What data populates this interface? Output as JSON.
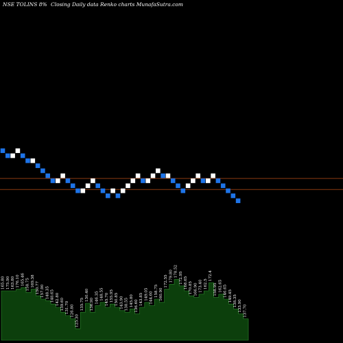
{
  "title": {
    "symbol": "NSE TOLINS",
    "change": "8%",
    "arrow": "",
    "description": "Closing Daily data Renko charts MunafaSutra.com"
  },
  "colors": {
    "background": "#000000",
    "up_brick": "#ffffff",
    "down_brick": "#1e74e8",
    "level_line": "#8a3a10",
    "volume": "#0c3f0c",
    "volume_line": "#2e8b2e",
    "label": "#ffffff"
  },
  "chart_data": {
    "type": "renko",
    "title": "NSE TOLINS 8% Closing Daily data Renko charts MunafaSutra.com",
    "bricks": [
      {
        "dir": "down",
        "level": 0
      },
      {
        "dir": "down",
        "level": -1
      },
      {
        "dir": "up",
        "level": -1
      },
      {
        "dir": "up",
        "level": 0
      },
      {
        "dir": "down",
        "level": -1
      },
      {
        "dir": "down",
        "level": -2
      },
      {
        "dir": "up",
        "level": -2
      },
      {
        "dir": "down",
        "level": -3
      },
      {
        "dir": "down",
        "level": -4
      },
      {
        "dir": "down",
        "level": -5
      },
      {
        "dir": "down",
        "level": -6
      },
      {
        "dir": "up",
        "level": -6
      },
      {
        "dir": "up",
        "level": -5
      },
      {
        "dir": "down",
        "level": -6
      },
      {
        "dir": "down",
        "level": -7
      },
      {
        "dir": "down",
        "level": -8
      },
      {
        "dir": "up",
        "level": -8
      },
      {
        "dir": "up",
        "level": -7
      },
      {
        "dir": "up",
        "level": -6
      },
      {
        "dir": "down",
        "level": -7
      },
      {
        "dir": "down",
        "level": -8
      },
      {
        "dir": "down",
        "level": -9
      },
      {
        "dir": "up",
        "level": -8
      },
      {
        "dir": "down",
        "level": -9
      },
      {
        "dir": "up",
        "level": -8
      },
      {
        "dir": "up",
        "level": -7
      },
      {
        "dir": "up",
        "level": -6
      },
      {
        "dir": "up",
        "level": -5
      },
      {
        "dir": "down",
        "level": -6
      },
      {
        "dir": "up",
        "level": -6
      },
      {
        "dir": "up",
        "level": -5
      },
      {
        "dir": "up",
        "level": -4
      },
      {
        "dir": "down",
        "level": -5
      },
      {
        "dir": "up",
        "level": -5
      },
      {
        "dir": "down",
        "level": -6
      },
      {
        "dir": "down",
        "level": -7
      },
      {
        "dir": "down",
        "level": -8
      },
      {
        "dir": "up",
        "level": -7
      },
      {
        "dir": "up",
        "level": -6
      },
      {
        "dir": "up",
        "level": -5
      },
      {
        "dir": "down",
        "level": -6
      },
      {
        "dir": "up",
        "level": -6
      },
      {
        "dir": "up",
        "level": -5
      },
      {
        "dir": "down",
        "level": -6
      },
      {
        "dir": "down",
        "level": -7
      },
      {
        "dir": "down",
        "level": -8
      },
      {
        "dir": "down",
        "level": -9
      },
      {
        "dir": "down",
        "level": -10
      }
    ],
    "levels": [
      {
        "brick_level": -5.5,
        "label": ""
      },
      {
        "brick_level": -7.7,
        "label": ""
      }
    ],
    "volume": [
      {
        "value": 60,
        "label": "165.80"
      },
      {
        "value": 60,
        "label": "175.90"
      },
      {
        "value": 60,
        "label": "163.80"
      },
      {
        "value": 62,
        "label": "176.10"
      },
      {
        "value": 64,
        "label": "165.46"
      },
      {
        "value": 58,
        "label": "158.75"
      },
      {
        "value": 62,
        "label": "169.38"
      },
      {
        "value": 54,
        "label": "150.77"
      },
      {
        "value": 50,
        "label": "157.90"
      },
      {
        "value": 48,
        "label": "148.35"
      },
      {
        "value": 44,
        "label": "148.65"
      },
      {
        "value": 40,
        "label": "142.80"
      },
      {
        "value": 34,
        "label": "139.60"
      },
      {
        "value": 30,
        "label": "131.70"
      },
      {
        "value": 26,
        "label": "126.80"
      },
      {
        "value": 14,
        "label": "125.30"
      },
      {
        "value": 34,
        "label": "135.75"
      },
      {
        "value": 45,
        "label": "130.40"
      },
      {
        "value": 34,
        "label": "136.90"
      },
      {
        "value": 42,
        "label": "146.35"
      },
      {
        "value": 46,
        "label": "148.55"
      },
      {
        "value": 40,
        "label": "145.70"
      },
      {
        "value": 44,
        "label": "155.95"
      },
      {
        "value": 40,
        "label": "150.85"
      },
      {
        "value": 36,
        "label": "143.90"
      },
      {
        "value": 34,
        "label": "138.55"
      },
      {
        "value": 38,
        "label": "145.80"
      },
      {
        "value": 32,
        "label": "136.60"
      },
      {
        "value": 40,
        "label": "143.85"
      },
      {
        "value": 46,
        "label": "149.05"
      },
      {
        "value": 42,
        "label": "144.60"
      },
      {
        "value": 50,
        "label": "158.75"
      },
      {
        "value": 46,
        "label": "160.90"
      },
      {
        "value": 62,
        "label": "172.55"
      },
      {
        "value": 68,
        "label": "179.80"
      },
      {
        "value": 74,
        "label": "178.52"
      },
      {
        "value": 66,
        "label": "172.95"
      },
      {
        "value": 60,
        "label": "168.65"
      },
      {
        "value": 54,
        "label": "170.85"
      },
      {
        "value": 52,
        "label": "166.90"
      },
      {
        "value": 56,
        "label": "173.40"
      },
      {
        "value": 60,
        "label": "162.5"
      },
      {
        "value": 70,
        "label": "172.4"
      },
      {
        "value": 52,
        "label": "158.95"
      },
      {
        "value": 56,
        "label": "162.65"
      },
      {
        "value": 50,
        "label": "146.65"
      },
      {
        "value": 44,
        "label": "149.45"
      },
      {
        "value": 38,
        "label": "138.35"
      },
      {
        "value": 32,
        "label": "133.90"
      },
      {
        "value": 26,
        "label": "137.70"
      }
    ]
  }
}
